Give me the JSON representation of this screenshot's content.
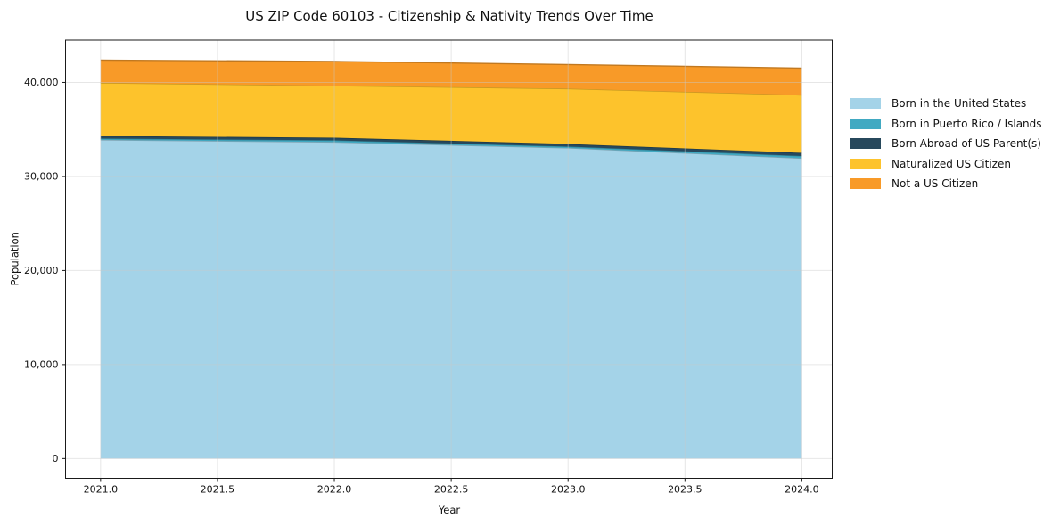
{
  "chart_data": {
    "type": "area",
    "stacked": true,
    "title": "US ZIP Code 60103 - Citizenship & Nativity Trends Over Time",
    "xlabel": "Year",
    "ylabel": "Population",
    "x": [
      2021,
      2022,
      2023,
      2024
    ],
    "series": [
      {
        "name": "Born in the United States",
        "color": "#a4d3e8",
        "values": [
          33890,
          33650,
          33030,
          31940
        ]
      },
      {
        "name": "Born in Puerto Rico / Islands",
        "color": "#41a9c2",
        "values": [
          140,
          190,
          150,
          240
        ]
      },
      {
        "name": "Born Abroad of US Parent(s)",
        "color": "#27485c",
        "values": [
          280,
          280,
          280,
          330
        ]
      },
      {
        "name": "Naturalized US Citizen",
        "color": "#fdc32c",
        "values": [
          5640,
          5530,
          5880,
          6160
        ]
      },
      {
        "name": "Not a US Citizen",
        "color": "#f89a28",
        "values": [
          2420,
          2580,
          2560,
          2850
        ]
      }
    ],
    "xticks": {
      "values": [
        2021.0,
        2021.5,
        2022.0,
        2022.5,
        2023.0,
        2023.5,
        2024.0
      ],
      "labels": [
        "2021.0",
        "2021.5",
        "2022.0",
        "2022.5",
        "2023.0",
        "2023.5",
        "2024.0"
      ]
    },
    "yticks": {
      "values": [
        0,
        10000,
        20000,
        30000,
        40000
      ],
      "labels": [
        "0",
        "10,000",
        "20,000",
        "30,000",
        "40,000"
      ]
    },
    "xlim": [
      2020.85,
      2024.13
    ],
    "ylim": [
      -2100,
      44500
    ],
    "grid": true,
    "legend_position": "right"
  },
  "colors": {
    "spine": "#1a1a1a",
    "grid": "#c9c9c9",
    "text": "#111111",
    "background": "#ffffff"
  }
}
